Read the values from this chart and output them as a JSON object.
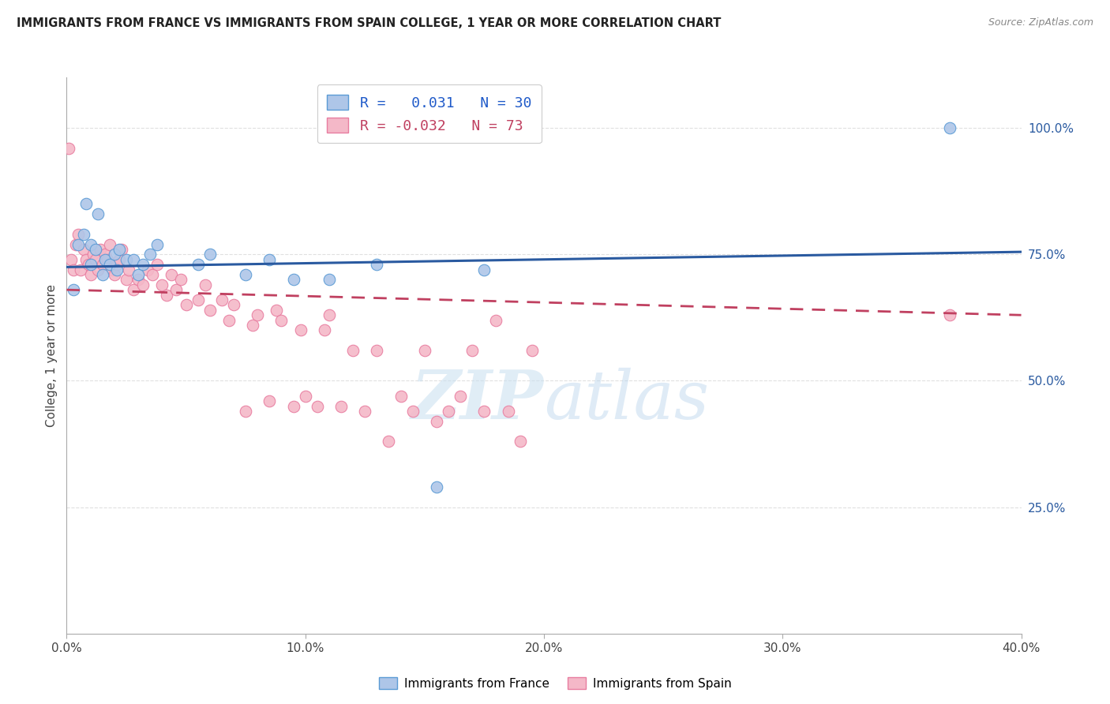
{
  "title": "IMMIGRANTS FROM FRANCE VS IMMIGRANTS FROM SPAIN COLLEGE, 1 YEAR OR MORE CORRELATION CHART",
  "source": "Source: ZipAtlas.com",
  "ylabel": "College, 1 year or more",
  "x_min": 0.0,
  "x_max": 0.4,
  "y_min": 0.0,
  "y_max": 1.1,
  "x_tick_labels": [
    "0.0%",
    "10.0%",
    "20.0%",
    "30.0%",
    "40.0%"
  ],
  "x_tick_vals": [
    0.0,
    0.1,
    0.2,
    0.3,
    0.4
  ],
  "y_tick_labels_right": [
    "25.0%",
    "50.0%",
    "75.0%",
    "100.0%"
  ],
  "y_tick_vals_right": [
    0.25,
    0.5,
    0.75,
    1.0
  ],
  "grid_color": "#e0e0e0",
  "france_color": "#aec6e8",
  "spain_color": "#f4b8c8",
  "france_edge": "#5b9bd5",
  "spain_edge": "#e87da0",
  "france_R": 0.031,
  "france_N": 30,
  "spain_R": -0.032,
  "spain_N": 73,
  "france_line_color": "#2a5aa0",
  "spain_line_color": "#c04060",
  "watermark_color": "#c8dff0",
  "legend_R_color": "#1f5ac9",
  "legend_spain_color": "#c04060",
  "france_x": [
    0.003,
    0.005,
    0.007,
    0.008,
    0.01,
    0.01,
    0.012,
    0.013,
    0.015,
    0.016,
    0.018,
    0.02,
    0.021,
    0.022,
    0.025,
    0.028,
    0.03,
    0.032,
    0.035,
    0.038,
    0.055,
    0.06,
    0.075,
    0.085,
    0.095,
    0.11,
    0.13,
    0.155,
    0.175,
    0.37
  ],
  "france_y": [
    0.68,
    0.77,
    0.79,
    0.85,
    0.73,
    0.77,
    0.76,
    0.83,
    0.71,
    0.74,
    0.73,
    0.75,
    0.72,
    0.76,
    0.74,
    0.74,
    0.71,
    0.73,
    0.75,
    0.77,
    0.73,
    0.75,
    0.71,
    0.74,
    0.7,
    0.7,
    0.73,
    0.29,
    0.72,
    1.0
  ],
  "spain_x": [
    0.001,
    0.002,
    0.003,
    0.004,
    0.005,
    0.006,
    0.007,
    0.008,
    0.009,
    0.01,
    0.011,
    0.012,
    0.013,
    0.014,
    0.015,
    0.016,
    0.017,
    0.018,
    0.019,
    0.02,
    0.021,
    0.022,
    0.023,
    0.025,
    0.026,
    0.028,
    0.03,
    0.032,
    0.034,
    0.036,
    0.038,
    0.04,
    0.042,
    0.044,
    0.046,
    0.048,
    0.05,
    0.055,
    0.058,
    0.06,
    0.065,
    0.068,
    0.07,
    0.075,
    0.078,
    0.08,
    0.085,
    0.088,
    0.09,
    0.095,
    0.098,
    0.1,
    0.105,
    0.108,
    0.11,
    0.115,
    0.12,
    0.125,
    0.13,
    0.135,
    0.14,
    0.145,
    0.15,
    0.155,
    0.16,
    0.165,
    0.17,
    0.175,
    0.18,
    0.185,
    0.19,
    0.195,
    0.37
  ],
  "spain_y": [
    0.96,
    0.74,
    0.72,
    0.77,
    0.79,
    0.72,
    0.76,
    0.74,
    0.73,
    0.71,
    0.75,
    0.74,
    0.72,
    0.76,
    0.73,
    0.75,
    0.74,
    0.77,
    0.72,
    0.71,
    0.73,
    0.74,
    0.76,
    0.7,
    0.72,
    0.68,
    0.7,
    0.69,
    0.72,
    0.71,
    0.73,
    0.69,
    0.67,
    0.71,
    0.68,
    0.7,
    0.65,
    0.66,
    0.69,
    0.64,
    0.66,
    0.62,
    0.65,
    0.44,
    0.61,
    0.63,
    0.46,
    0.64,
    0.62,
    0.45,
    0.6,
    0.47,
    0.45,
    0.6,
    0.63,
    0.45,
    0.56,
    0.44,
    0.56,
    0.38,
    0.47,
    0.44,
    0.56,
    0.42,
    0.44,
    0.47,
    0.56,
    0.44,
    0.62,
    0.44,
    0.38,
    0.56,
    0.63
  ]
}
